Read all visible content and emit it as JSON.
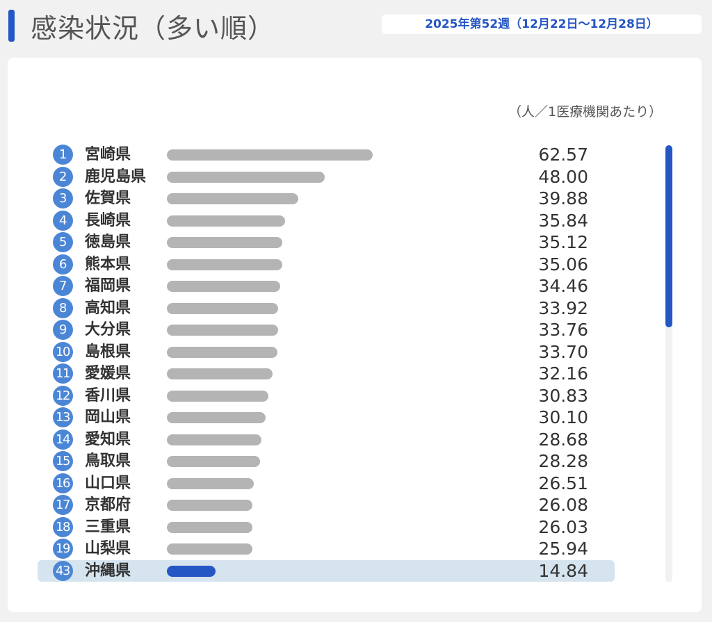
{
  "header": {
    "title": "感染状況（多い順）",
    "week": "2025年第52週（12月22日〜12月28日）"
  },
  "colors": {
    "accent": "#2456c4",
    "rank_badge": "#4b86d6",
    "bar": "#b4b4b4",
    "highlight_row": "#d5e4ee"
  },
  "chart_data": {
    "type": "bar",
    "orientation": "horizontal",
    "title": "",
    "unit_label": "（人／1医療機関あたり）",
    "xlim": [
      0,
      62.57
    ],
    "grid": false,
    "rows": [
      {
        "rank": "1",
        "name": "宮崎県",
        "value": 62.57,
        "value_label": "62.57",
        "highlight": false
      },
      {
        "rank": "2",
        "name": "鹿児島県",
        "value": 48.0,
        "value_label": "48.00",
        "highlight": false
      },
      {
        "rank": "3",
        "name": "佐賀県",
        "value": 39.88,
        "value_label": "39.88",
        "highlight": false
      },
      {
        "rank": "4",
        "name": "長崎県",
        "value": 35.84,
        "value_label": "35.84",
        "highlight": false
      },
      {
        "rank": "5",
        "name": "徳島県",
        "value": 35.12,
        "value_label": "35.12",
        "highlight": false
      },
      {
        "rank": "6",
        "name": "熊本県",
        "value": 35.06,
        "value_label": "35.06",
        "highlight": false
      },
      {
        "rank": "7",
        "name": "福岡県",
        "value": 34.46,
        "value_label": "34.46",
        "highlight": false
      },
      {
        "rank": "8",
        "name": "高知県",
        "value": 33.92,
        "value_label": "33.92",
        "highlight": false
      },
      {
        "rank": "9",
        "name": "大分県",
        "value": 33.76,
        "value_label": "33.76",
        "highlight": false
      },
      {
        "rank": "10",
        "name": "島根県",
        "value": 33.7,
        "value_label": "33.70",
        "highlight": false
      },
      {
        "rank": "11",
        "name": "愛媛県",
        "value": 32.16,
        "value_label": "32.16",
        "highlight": false
      },
      {
        "rank": "12",
        "name": "香川県",
        "value": 30.83,
        "value_label": "30.83",
        "highlight": false
      },
      {
        "rank": "13",
        "name": "岡山県",
        "value": 30.1,
        "value_label": "30.10",
        "highlight": false
      },
      {
        "rank": "14",
        "name": "愛知県",
        "value": 28.68,
        "value_label": "28.68",
        "highlight": false
      },
      {
        "rank": "15",
        "name": "鳥取県",
        "value": 28.28,
        "value_label": "28.28",
        "highlight": false
      },
      {
        "rank": "16",
        "name": "山口県",
        "value": 26.51,
        "value_label": "26.51",
        "highlight": false
      },
      {
        "rank": "17",
        "name": "京都府",
        "value": 26.08,
        "value_label": "26.08",
        "highlight": false
      },
      {
        "rank": "18",
        "name": "三重県",
        "value": 26.03,
        "value_label": "26.03",
        "highlight": false
      },
      {
        "rank": "19",
        "name": "山梨県",
        "value": 25.94,
        "value_label": "25.94",
        "highlight": false
      },
      {
        "rank": "43",
        "name": "沖縄県",
        "value": 14.84,
        "value_label": "14.84",
        "highlight": true
      }
    ]
  }
}
